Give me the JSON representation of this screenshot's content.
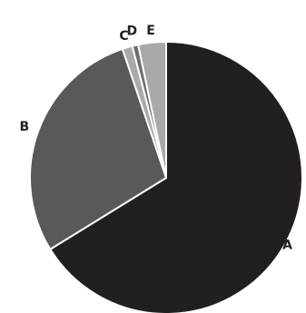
{
  "chart_data": {
    "type": "pie",
    "title": "",
    "start_angle_deg": 0,
    "direction": "clockwise",
    "categories": [
      "A",
      "B",
      "C",
      "D",
      "E"
    ],
    "values": [
      66.2,
      28.6,
      1.2,
      0.7,
      3.3
    ],
    "colors": [
      "#231f20",
      "#58595b",
      "#a7a9ac",
      "#6d6e71",
      "#a7a9ac"
    ],
    "slice_border_color": "#ffffff",
    "labels": [
      "A",
      "B",
      "C",
      "D",
      "E"
    ],
    "legend": "none"
  }
}
